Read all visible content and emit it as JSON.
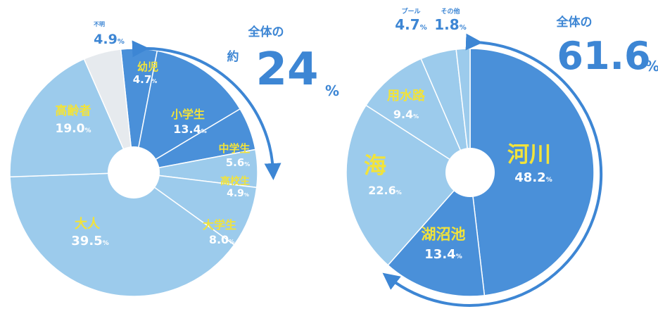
{
  "chart_data": [
    {
      "type": "pie",
      "donut": true,
      "unit": "%",
      "slices": [
        {
          "label": "幼児",
          "value": 4.7,
          "value_text": "4.7",
          "unit_text": "%",
          "color": "#4a90d9"
        },
        {
          "label": "小学生",
          "value": 13.4,
          "value_text": "13.4",
          "unit_text": "%",
          "color": "#4a90d9"
        },
        {
          "label": "中学生",
          "value": 5.6,
          "value_text": "5.6",
          "unit_text": "%",
          "color": "#4a90d9"
        },
        {
          "label": "高校生",
          "value": 4.9,
          "value_text": "4.9",
          "unit_text": "%",
          "color": "#9ccbec"
        },
        {
          "label": "大学生",
          "value": 8.0,
          "value_text": "8.0",
          "unit_text": "%",
          "color": "#9ccbec"
        },
        {
          "label": "大人",
          "value": 39.5,
          "value_text": "39.5",
          "unit_text": "%",
          "color": "#9ccbec"
        },
        {
          "label": "高齢者",
          "value": 19.0,
          "value_text": "19.0",
          "unit_text": "%",
          "color": "#9ccbec"
        },
        {
          "label": "不明",
          "value": 4.9,
          "value_text": "4.9",
          "unit_text": "%",
          "color": "#e6eaee"
        }
      ],
      "callout": {
        "prefix": "全体の",
        "approx": "約",
        "value": "24",
        "unit": "%"
      }
    },
    {
      "type": "pie",
      "donut": true,
      "unit": "%",
      "slices": [
        {
          "label": "河川",
          "value": 48.2,
          "value_text": "48.2",
          "unit_text": "%",
          "color": "#4a90d9"
        },
        {
          "label": "湖沼池",
          "value": 13.4,
          "value_text": "13.4",
          "unit_text": "%",
          "color": "#4a90d9"
        },
        {
          "label": "海",
          "value": 22.6,
          "value_text": "22.6",
          "unit_text": "%",
          "color": "#9ccbec"
        },
        {
          "label": "用水路",
          "value": 9.4,
          "value_text": "9.4",
          "unit_text": "%",
          "color": "#9ccbec"
        },
        {
          "label": "プール",
          "value": 4.7,
          "value_text": "4.7",
          "unit_text": "%",
          "color": "#9ccbec"
        },
        {
          "label": "その他",
          "value": 1.8,
          "value_text": "1.8",
          "unit_text": "%",
          "color": "#9ccbec"
        }
      ],
      "callout": {
        "prefix": "全体の",
        "value": "61.6",
        "unit": "%"
      }
    }
  ]
}
